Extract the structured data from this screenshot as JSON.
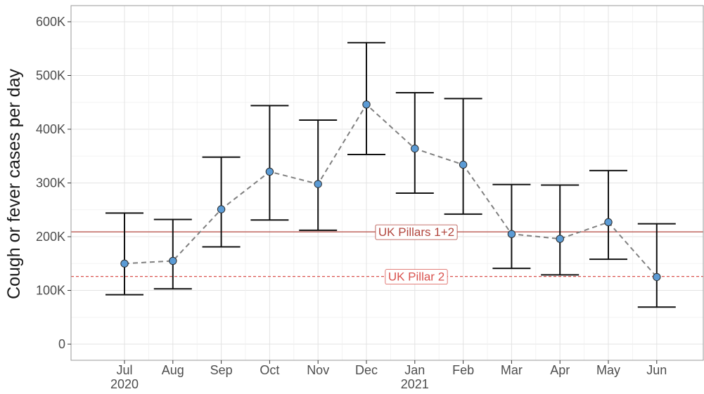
{
  "chart_data": {
    "type": "scatter",
    "title": "",
    "xlabel": "",
    "ylabel": "Cough or fever cases per day",
    "categories": [
      "Jul",
      "Aug",
      "Sep",
      "Oct",
      "Nov",
      "Dec",
      "Jan",
      "Feb",
      "Mar",
      "Apr",
      "May",
      "Jun"
    ],
    "year_labels": [
      {
        "category": "Jul",
        "year": "2020"
      },
      {
        "category": "Jan",
        "year": "2021"
      }
    ],
    "series": [
      {
        "values": [
          150000,
          155000,
          251000,
          321000,
          298000,
          446000,
          364000,
          334000,
          205000,
          196000,
          227000,
          125000
        ],
        "lower": [
          92000,
          103000,
          181000,
          231000,
          212000,
          353000,
          281000,
          242000,
          141000,
          129000,
          158000,
          69000
        ],
        "upper": [
          244000,
          232000,
          348000,
          444000,
          417000,
          561000,
          468000,
          457000,
          297000,
          296000,
          323000,
          224000
        ],
        "marker_color": "#5b9bd5",
        "line_style": "dashed",
        "line_color": "#808080"
      }
    ],
    "reference_lines": [
      {
        "label": "UK Pillars 1+2",
        "value": 209000,
        "style": "solid",
        "color": "#b2463e"
      },
      {
        "label": "UK Pillar 2",
        "value": 126000,
        "style": "dashed",
        "color": "#d9534f"
      }
    ],
    "yticks": [
      0,
      100000,
      200000,
      300000,
      400000,
      500000,
      600000
    ],
    "ytick_labels": [
      "0",
      "100K",
      "200K",
      "300K",
      "400K",
      "500K",
      "600K"
    ],
    "ylim": [
      -30000,
      630000
    ],
    "grid": true,
    "legend": "none"
  }
}
